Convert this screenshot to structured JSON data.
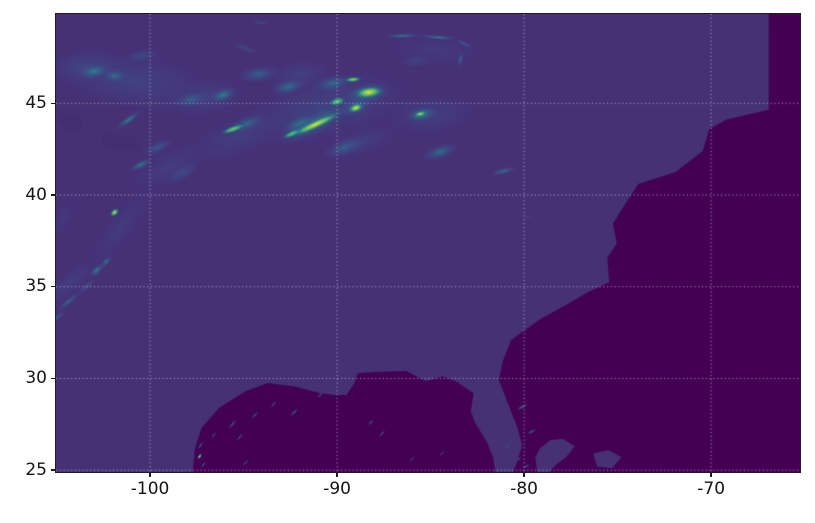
{
  "chart_data": {
    "type": "heatmap",
    "title": "",
    "xlabel": "",
    "ylabel": "",
    "colormap": "viridis",
    "grid": {
      "show": true,
      "color": "rgba(255,255,255,0.5)",
      "style": "dotted"
    },
    "x_axis": {
      "ticks": [
        -100,
        -90,
        -80,
        -70
      ],
      "labels": [
        "-100",
        "-90",
        "-80",
        "-70"
      ]
    },
    "y_axis": {
      "ticks": [
        45,
        40,
        35,
        30,
        25
      ],
      "labels": [
        "45",
        "40",
        "35",
        "30",
        "25"
      ]
    },
    "extent": {
      "lon_min": -105.03,
      "lon_max": -65.25,
      "lat_min": 24.9,
      "lat_max": 49.87
    },
    "colors": {
      "ocean": "#440154",
      "land": "#463175",
      "dark_patch": "#3c2a69",
      "spine": "#1c1c1c",
      "tick_label": "#151515",
      "figure_background": "#ffffff"
    },
    "viridis_stops": [
      [
        0.0,
        "#440154"
      ],
      [
        0.13,
        "#46327e"
      ],
      [
        0.25,
        "#3f4b8a"
      ],
      [
        0.38,
        "#355e8d"
      ],
      [
        0.5,
        "#2a788e"
      ],
      [
        0.6,
        "#21918c"
      ],
      [
        0.7,
        "#27ad81"
      ],
      [
        0.8,
        "#42be71"
      ],
      [
        0.87,
        "#7ad151"
      ],
      [
        0.94,
        "#bddf26"
      ],
      [
        1.0,
        "#fde725"
      ]
    ],
    "land_polygons": {
      "mainland": [
        [
          -106,
          51
        ],
        [
          -66.92,
          51
        ],
        [
          -66.92,
          44.65
        ],
        [
          -68.2,
          44.35
        ],
        [
          -69.2,
          44.1
        ],
        [
          -70.1,
          43.6
        ],
        [
          -70.45,
          42.4
        ],
        [
          -71.9,
          41.25
        ],
        [
          -73.9,
          40.6
        ],
        [
          -74.6,
          39.5
        ],
        [
          -75.25,
          38.45
        ],
        [
          -75.05,
          37.35
        ],
        [
          -75.55,
          36.6
        ],
        [
          -75.45,
          35.25
        ],
        [
          -76.6,
          34.7
        ],
        [
          -77.85,
          33.95
        ],
        [
          -79.1,
          33.25
        ],
        [
          -80.7,
          32.1
        ],
        [
          -81.15,
          30.9
        ],
        [
          -81.35,
          29.9
        ],
        [
          -80.9,
          28.75
        ],
        [
          -80.35,
          27.3
        ],
        [
          -80.1,
          26.35
        ],
        [
          -80.45,
          25.25
        ],
        [
          -80.7,
          24.6
        ],
        [
          -81.5,
          24.6
        ],
        [
          -81.65,
          25.65
        ],
        [
          -81.95,
          26.45
        ],
        [
          -82.6,
          27.55
        ],
        [
          -82.85,
          28.2
        ],
        [
          -82.7,
          29.2
        ],
        [
          -83.65,
          29.85
        ],
        [
          -84.35,
          30.1
        ],
        [
          -85.25,
          29.85
        ],
        [
          -86.3,
          30.4
        ],
        [
          -87.9,
          30.35
        ],
        [
          -88.9,
          30.3
        ],
        [
          -89.1,
          29.7
        ],
        [
          -89.5,
          29.1
        ],
        [
          -90.2,
          29.1
        ],
        [
          -91.1,
          29.25
        ],
        [
          -92.2,
          29.55
        ],
        [
          -93.7,
          29.75
        ],
        [
          -94.9,
          29.3
        ],
        [
          -96.3,
          28.4
        ],
        [
          -97.25,
          27.3
        ],
        [
          -97.6,
          26.2
        ],
        [
          -97.75,
          24.6
        ],
        [
          -106,
          24.6
        ]
      ],
      "bahamas": [
        [
          [
            -79.3,
            24.9
          ],
          [
            -79.4,
            25.7
          ],
          [
            -79.15,
            26.2
          ],
          [
            -78.6,
            26.65
          ],
          [
            -77.9,
            26.7
          ],
          [
            -77.3,
            26.3
          ],
          [
            -77.75,
            25.7
          ],
          [
            -78.3,
            25.3
          ],
          [
            -78.65,
            24.9
          ]
        ],
        [
          [
            -76.3,
            25.9
          ],
          [
            -75.5,
            26.1
          ],
          [
            -74.8,
            25.7
          ],
          [
            -75.3,
            25.1
          ],
          [
            -76.1,
            25.2
          ]
        ]
      ]
    },
    "dark_patches": [
      [
        [
          -104.8,
          44.45
        ],
        [
          -103.75,
          44.35
        ],
        [
          -103.6,
          43.7
        ],
        [
          -104.4,
          43.55
        ],
        [
          -104.85,
          43.9
        ]
      ],
      [
        [
          -102.5,
          43.3
        ],
        [
          -100.8,
          43.15
        ],
        [
          -100.6,
          42.55
        ],
        [
          -101.9,
          42.5
        ],
        [
          -102.55,
          42.9
        ]
      ],
      [
        [
          -90.5,
          45.3
        ],
        [
          -88.8,
          44.9
        ],
        [
          -89.4,
          43.5
        ],
        [
          -90.7,
          43.9
        ]
      ]
    ],
    "feature_format": [
      "lon",
      "lat",
      "length_deg",
      "width_deg",
      "angle_deg",
      "value"
    ],
    "cloud_features": [
      [
        -100.8,
        46.2,
        9.5,
        3.6,
        -8,
        0.3
      ],
      [
        -103.5,
        47.0,
        4.5,
        2.2,
        5,
        0.3
      ],
      [
        -97.0,
        45.3,
        5.0,
        2.4,
        10,
        0.28
      ],
      [
        -90.6,
        44.7,
        10.5,
        4.0,
        14,
        0.32
      ],
      [
        -85.0,
        44.4,
        5.5,
        2.6,
        4,
        0.28
      ],
      [
        -95.3,
        43.2,
        6.0,
        2.6,
        22,
        0.26
      ],
      [
        -99.0,
        41.5,
        5.5,
        2.2,
        28,
        0.24
      ],
      [
        -101.6,
        38.2,
        6.5,
        2.0,
        55,
        0.22
      ],
      [
        -104.3,
        35.2,
        4.5,
        1.4,
        42,
        0.26
      ],
      [
        -104.6,
        38.8,
        3.0,
        1.4,
        60,
        0.2
      ],
      [
        -84.8,
        47.9,
        6.0,
        2.0,
        -4,
        0.22
      ],
      [
        -88.6,
        42.9,
        5.0,
        1.8,
        18,
        0.25
      ],
      [
        -92.0,
        46.6,
        4.0,
        1.8,
        8,
        0.28
      ],
      [
        -103.0,
        46.75,
        1.9,
        0.9,
        8,
        0.6
      ],
      [
        -101.9,
        46.5,
        1.5,
        0.8,
        0,
        0.52
      ],
      [
        -100.4,
        47.6,
        2.2,
        0.8,
        12,
        0.38
      ],
      [
        -96.1,
        45.45,
        1.7,
        0.8,
        18,
        0.6
      ],
      [
        -97.8,
        45.2,
        2.0,
        0.9,
        12,
        0.45
      ],
      [
        -94.2,
        46.6,
        2.4,
        1.0,
        8,
        0.45
      ],
      [
        -92.6,
        45.9,
        2.2,
        0.9,
        14,
        0.52
      ],
      [
        -101.15,
        44.1,
        1.7,
        0.45,
        35,
        0.62
      ],
      [
        -100.5,
        41.65,
        1.5,
        0.5,
        26,
        0.58
      ],
      [
        -99.6,
        42.6,
        1.9,
        0.7,
        24,
        0.42
      ],
      [
        -98.3,
        41.2,
        2.4,
        0.9,
        30,
        0.38
      ],
      [
        -102.85,
        35.9,
        1.1,
        0.5,
        45,
        0.62
      ],
      [
        -102.35,
        36.35,
        0.9,
        0.4,
        45,
        0.55
      ],
      [
        -104.35,
        34.2,
        1.7,
        0.4,
        40,
        0.48
      ],
      [
        -105.0,
        33.3,
        1.6,
        0.35,
        40,
        0.42
      ],
      [
        -103.4,
        35.0,
        1.3,
        0.4,
        42,
        0.4
      ],
      [
        -94.9,
        48.0,
        1.7,
        0.4,
        -22,
        0.38
      ],
      [
        -94.1,
        49.4,
        1.3,
        0.3,
        -12,
        0.33
      ],
      [
        -86.5,
        48.68,
        2.3,
        0.3,
        2,
        0.58
      ],
      [
        -84.6,
        48.6,
        2.1,
        0.28,
        -4,
        0.62
      ],
      [
        -83.2,
        48.25,
        1.3,
        0.25,
        -28,
        0.45
      ],
      [
        -83.4,
        47.4,
        0.9,
        0.35,
        80,
        0.48
      ],
      [
        -85.8,
        47.3,
        2.0,
        0.8,
        5,
        0.3
      ],
      [
        -84.5,
        42.35,
        2.2,
        0.9,
        18,
        0.5
      ],
      [
        -81.1,
        41.3,
        1.5,
        0.4,
        14,
        0.52
      ],
      [
        -92.0,
        43.9,
        2.2,
        0.9,
        24,
        0.58
      ],
      [
        -94.8,
        43.9,
        2.3,
        0.9,
        20,
        0.48
      ],
      [
        -89.6,
        42.6,
        2.6,
        1.0,
        20,
        0.45
      ],
      [
        -91.2,
        43.9,
        4.6,
        1.2,
        26,
        0.62
      ],
      [
        -88.4,
        45.55,
        2.7,
        1.2,
        10,
        0.62
      ],
      [
        -89.0,
        44.8,
        1.8,
        1.0,
        20,
        0.58
      ],
      [
        -85.5,
        44.4,
        1.8,
        0.85,
        12,
        0.68
      ],
      [
        -90.2,
        46.1,
        2.4,
        1.0,
        10,
        0.5
      ],
      [
        -95.55,
        43.6,
        1.5,
        0.38,
        20,
        0.88
      ],
      [
        -101.9,
        39.05,
        0.6,
        0.4,
        40,
        0.97
      ],
      [
        -91.15,
        43.85,
        3.3,
        0.5,
        25,
        1.0
      ],
      [
        -92.4,
        43.35,
        1.2,
        0.35,
        25,
        0.85
      ],
      [
        -88.3,
        45.6,
        1.7,
        0.7,
        8,
        1.0
      ],
      [
        -89.15,
        46.3,
        1.0,
        0.32,
        4,
        0.92
      ],
      [
        -89.0,
        44.75,
        0.9,
        0.5,
        18,
        1.0
      ],
      [
        -90.0,
        45.1,
        1.0,
        0.45,
        14,
        0.88
      ],
      [
        -85.55,
        44.42,
        0.75,
        0.32,
        12,
        0.95
      ],
      [
        -97.35,
        25.75,
        0.4,
        0.18,
        55,
        0.95
      ],
      [
        -97.3,
        26.35,
        0.55,
        0.16,
        55,
        0.55
      ],
      [
        -97.15,
        25.3,
        0.45,
        0.15,
        55,
        0.5
      ],
      [
        -96.6,
        26.9,
        0.45,
        0.13,
        52,
        0.45
      ],
      [
        -95.6,
        27.5,
        0.7,
        0.18,
        50,
        0.55
      ],
      [
        -95.2,
        26.8,
        0.5,
        0.15,
        50,
        0.48
      ],
      [
        -94.4,
        28.0,
        0.55,
        0.15,
        48,
        0.5
      ],
      [
        -93.4,
        28.6,
        0.5,
        0.15,
        48,
        0.48
      ],
      [
        -92.3,
        28.15,
        0.6,
        0.18,
        45,
        0.55
      ],
      [
        -90.9,
        29.1,
        0.5,
        0.15,
        45,
        0.45
      ],
      [
        -88.2,
        27.6,
        0.45,
        0.15,
        45,
        0.5
      ],
      [
        -87.6,
        27.0,
        0.5,
        0.15,
        45,
        0.5
      ],
      [
        -86.0,
        25.6,
        0.4,
        0.12,
        42,
        0.45
      ],
      [
        -84.4,
        25.9,
        0.4,
        0.12,
        40,
        0.4
      ],
      [
        -80.1,
        28.45,
        0.75,
        0.2,
        28,
        0.6
      ],
      [
        -79.6,
        27.1,
        0.6,
        0.18,
        28,
        0.55
      ],
      [
        -80.3,
        25.6,
        0.45,
        0.15,
        30,
        0.5
      ],
      [
        -79.9,
        25.2,
        0.5,
        0.15,
        30,
        0.55
      ],
      [
        -80.9,
        26.3,
        0.4,
        0.14,
        30,
        0.45
      ],
      [
        -94.9,
        25.4,
        0.5,
        0.14,
        50,
        0.45
      ],
      [
        -79.8,
        38.8,
        0.5,
        0.2,
        18,
        0.33
      ]
    ]
  }
}
